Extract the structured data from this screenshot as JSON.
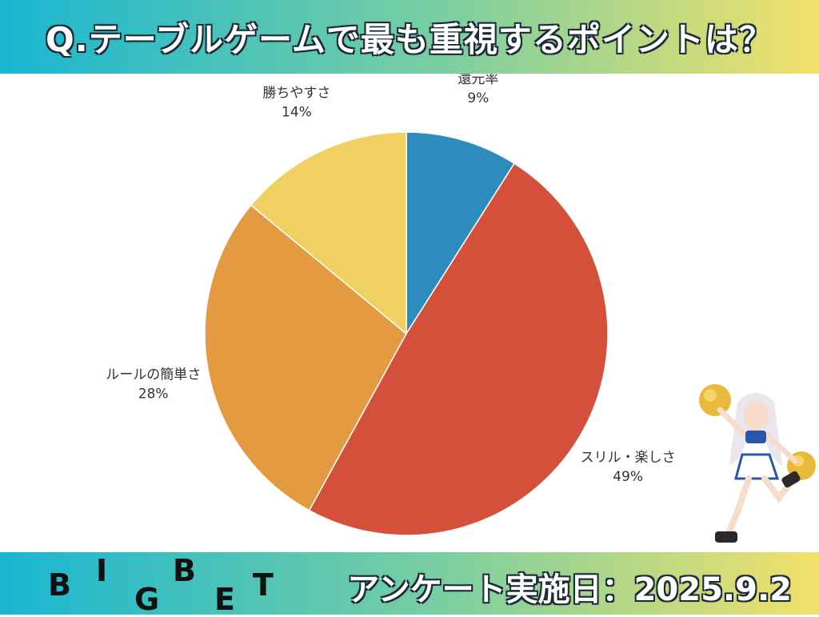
{
  "header": {
    "title": "Q.テーブルゲームで最も重視するポイントは？"
  },
  "chart_data": {
    "type": "pie",
    "title": "Q.テーブルゲームで最も重視するポイントは？",
    "start_angle_deg": 0,
    "direction": "clockwise",
    "slices": [
      {
        "label": "還元率",
        "value": 9,
        "value_label": "9%",
        "color": "#2e8bbd"
      },
      {
        "label": "スリル・楽しさ",
        "value": 49,
        "value_label": "49%",
        "color": "#d5503b"
      },
      {
        "label": "ルールの簡単さ",
        "value": 28,
        "value_label": "28%",
        "color": "#e49a40"
      },
      {
        "label": "勝ちやすさ",
        "value": 14,
        "value_label": "14%",
        "color": "#efd060"
      }
    ]
  },
  "footer": {
    "logo_letters": [
      "B",
      "I",
      "G",
      "B",
      "E",
      "T"
    ],
    "survey_date": "アンケート実施日：2025.9.2"
  },
  "mascot": {
    "icon": "cheerleader-mascot-icon"
  }
}
